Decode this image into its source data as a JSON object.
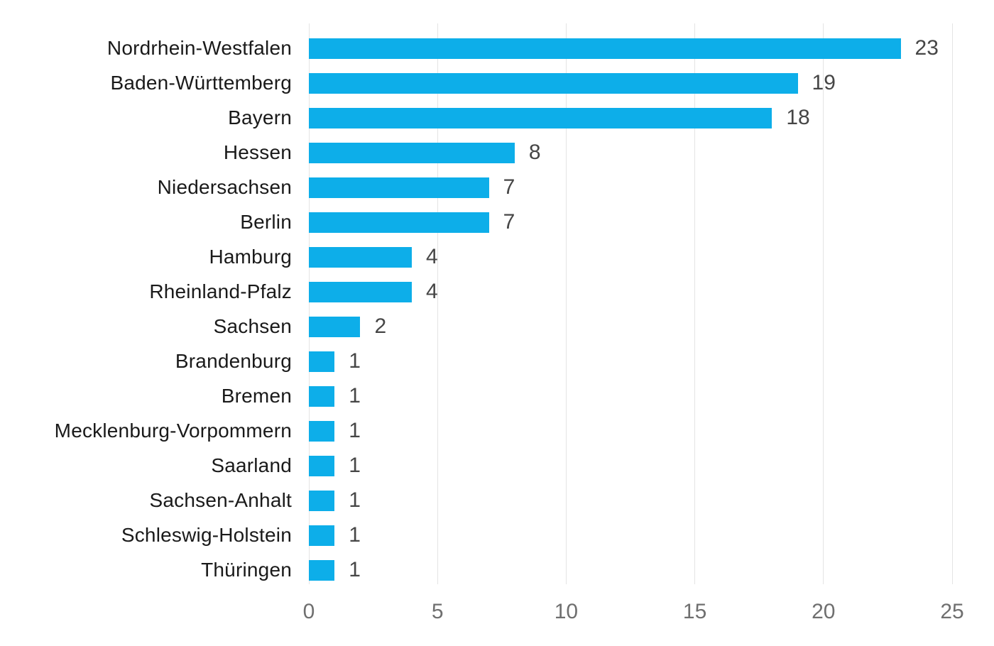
{
  "chart_data": {
    "type": "bar",
    "orientation": "horizontal",
    "title": "",
    "xlabel": "",
    "ylabel": "",
    "legend": "none",
    "grid": "vertical",
    "categories": [
      "Nordrhein-Westfalen",
      "Baden-Württemberg",
      "Bayern",
      "Hessen",
      "Niedersachsen",
      "Berlin",
      "Hamburg",
      "Rheinland-Pfalz",
      "Sachsen",
      "Brandenburg",
      "Bremen",
      "Mecklenburg-Vorpommern",
      "Saarland",
      "Sachsen-Anhalt",
      "Schleswig-Holstein",
      "Thüringen"
    ],
    "values": [
      23,
      19,
      18,
      8,
      7,
      7,
      4,
      4,
      2,
      1,
      1,
      1,
      1,
      1,
      1,
      1
    ],
    "value_labels": [
      "23",
      "19",
      "18",
      "8",
      "7",
      "7",
      "4",
      "4",
      "2",
      "1",
      "1",
      "1",
      "1",
      "1",
      "1",
      "1"
    ],
    "xlim": [
      0,
      25
    ],
    "xticks": [
      "0",
      "5",
      "10",
      "15",
      "20",
      "25"
    ],
    "colors": {
      "bar": "#0daee9",
      "gridline": "#e4e4e4",
      "category_label": "#1a1a1a",
      "value_label": "#464646",
      "tick_label": "#6f6f6f",
      "background": "#ffffff"
    }
  }
}
